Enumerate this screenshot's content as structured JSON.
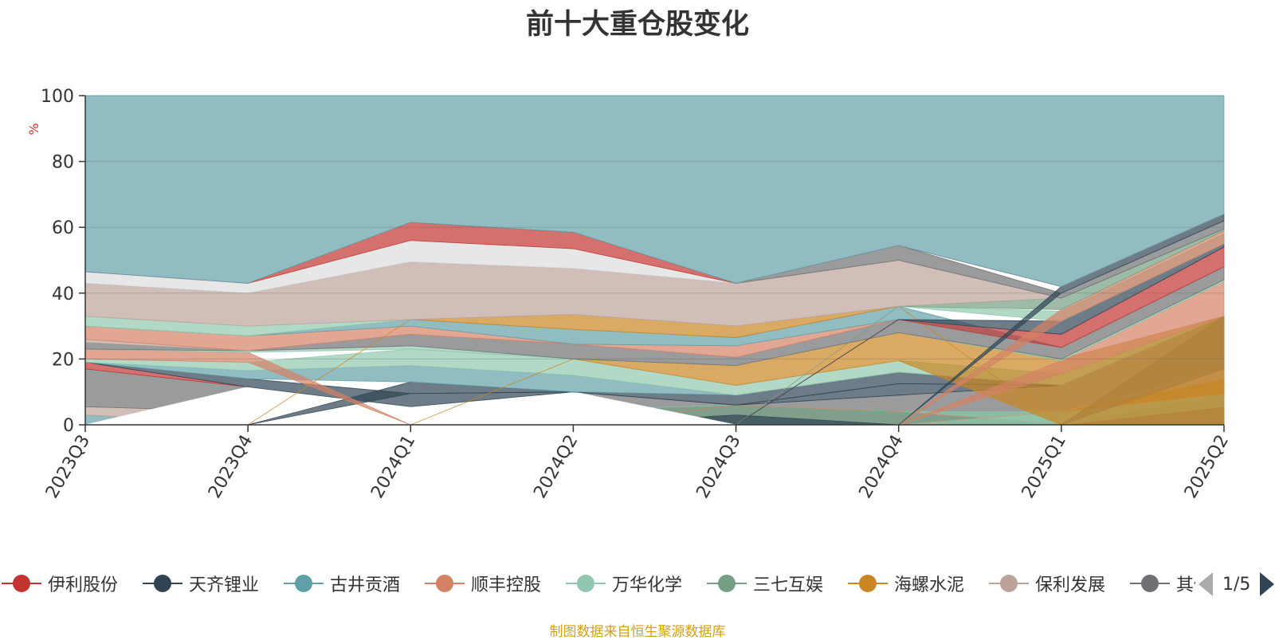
{
  "title": "前十大重仓股变化",
  "source_note": "制图数据来自恒生聚源数据库",
  "legend_page": "1/5",
  "legend": [
    {
      "name": "伊利股份",
      "color": "#c23531"
    },
    {
      "name": "天齐锂业",
      "color": "#2f4554"
    },
    {
      "name": "古井贡酒",
      "color": "#61a0a8"
    },
    {
      "name": "顺丰控股",
      "color": "#d48265"
    },
    {
      "name": "万华化学",
      "color": "#91c7ae"
    },
    {
      "name": "三七互娱",
      "color": "#749f83"
    },
    {
      "name": "海螺水泥",
      "color": "#ca8622"
    },
    {
      "name": "保利发展",
      "color": "#bda29a"
    },
    {
      "name": "其他",
      "color": "#6e7074"
    }
  ],
  "chart_data": {
    "type": "area",
    "title": "前十大重仓股变化",
    "ylabel": "%",
    "ylim": [
      0,
      100
    ],
    "yticks": [
      0,
      20,
      40,
      60,
      80,
      100
    ],
    "categories": [
      "2023Q3",
      "2023Q4",
      "2024Q1",
      "2024Q2",
      "2024Q3",
      "2024Q4",
      "2025Q1",
      "2025Q2"
    ],
    "grid": true,
    "bands": [
      {
        "color": "#61a0a8",
        "lower": [
          0,
          0,
          0,
          0,
          0,
          0,
          0,
          0
        ],
        "upper": [
          3,
          0,
          0,
          0,
          0,
          0,
          0,
          0
        ]
      },
      {
        "color": "#bda29a",
        "lower": [
          3,
          0,
          0,
          0,
          0,
          0,
          0,
          0
        ],
        "upper": [
          5.5,
          4,
          0,
          0,
          0,
          0,
          0,
          0
        ]
      },
      {
        "color": "#6e7074",
        "lower": [
          5.5,
          4,
          0,
          0,
          0,
          0,
          0,
          0
        ],
        "upper": [
          17,
          11.5,
          5,
          10,
          6,
          9,
          12,
          33
        ]
      },
      {
        "color": "#c23531",
        "lower": [
          17,
          11.5,
          0,
          0,
          0,
          0,
          0,
          0
        ],
        "upper": [
          19,
          11.5,
          0,
          0,
          0,
          0,
          0,
          5.5
        ]
      },
      {
        "color": "#749f83",
        "lower": [
          0,
          0,
          0,
          0,
          0,
          0,
          0,
          0
        ],
        "upper": [
          0,
          0,
          0,
          4.5,
          6,
          4,
          4,
          9
        ]
      },
      {
        "color": "#91c7ae",
        "lower": [
          0,
          0,
          0,
          4.5,
          6,
          4,
          0.3,
          9
        ],
        "upper": [
          0,
          0,
          0,
          4.5,
          6,
          4,
          4,
          9.5
        ]
      },
      {
        "color": "#d48265",
        "lower": [
          0,
          0,
          0,
          0,
          6,
          4,
          0.3,
          9.5
        ],
        "upper": [
          0,
          0,
          0,
          0,
          6,
          4,
          0.3,
          9.5
        ]
      },
      {
        "color": "#2f4554",
        "lower": [
          0,
          0,
          0,
          0,
          0,
          0,
          0,
          0
        ],
        "upper": [
          0,
          0,
          0,
          0,
          3,
          0,
          0,
          0
        ]
      },
      {
        "color": "#91c7ae",
        "lower": [
          0,
          0,
          0,
          0,
          0,
          0,
          0,
          5.5
        ],
        "upper": [
          0,
          0,
          0,
          0,
          0,
          0,
          4,
          9.5
        ]
      },
      {
        "color": "#ca8622",
        "lower": [
          0,
          0,
          0,
          0,
          0,
          0,
          4,
          9.5
        ],
        "upper": [
          0,
          0,
          0,
          0,
          0,
          0,
          4,
          14
        ]
      },
      {
        "color": "#bda29a",
        "lower": [
          0,
          0,
          0,
          0,
          0,
          0,
          4,
          14
        ],
        "upper": [
          0,
          0,
          0,
          0,
          0,
          0,
          4,
          17
        ]
      },
      {
        "color": "#6e7074",
        "lower": [
          0,
          0,
          0,
          0,
          0,
          0,
          0,
          17
        ],
        "upper": [
          0,
          0,
          0,
          0,
          0,
          0,
          0,
          33
        ]
      },
      {
        "color": "#ffffff",
        "lower": [
          0,
          0,
          0,
          0,
          0,
          0,
          0,
          0
        ],
        "upper": [
          0,
          11.5,
          5.5,
          10,
          0,
          0,
          0,
          0
        ]
      },
      {
        "color": "#2f4554",
        "lower": [
          19,
          11.5,
          5.5,
          10,
          6,
          9,
          12,
          33
        ],
        "upper": [
          19,
          14,
          9.5,
          10,
          6,
          12.5,
          12,
          33
        ]
      },
      {
        "color": "#2f4554",
        "lower": [
          0,
          0,
          9.5,
          10,
          6,
          12.5,
          12,
          33
        ],
        "upper": [
          0,
          0,
          13,
          10,
          9,
          16,
          12,
          33
        ]
      },
      {
        "color": "#61a0a8",
        "lower": [
          19,
          14,
          13,
          10,
          9,
          16,
          12,
          33
        ],
        "upper": [
          19,
          16.5,
          18,
          15,
          9,
          16,
          12,
          33
        ]
      },
      {
        "color": "#91c7ae",
        "lower": [
          19,
          16.5,
          18,
          15,
          9,
          16,
          12,
          33
        ],
        "upper": [
          20,
          19,
          23,
          20,
          12,
          19.5,
          15.5,
          33
        ]
      },
      {
        "color": "#ca8622",
        "lower": [
          0,
          0,
          0,
          20,
          12,
          19.5,
          0,
          0
        ],
        "upper": [
          0,
          0,
          0,
          20,
          18,
          28,
          20,
          33
        ]
      },
      {
        "color": "#d48265",
        "lower": [
          20,
          19,
          0,
          0,
          0,
          0,
          15.5,
          33
        ],
        "upper": [
          23,
          22,
          0,
          0,
          0,
          0,
          19.5,
          43.5
        ]
      },
      {
        "color": "#91c7ae",
        "lower": [
          23,
          22,
          23,
          20,
          18,
          28,
          19.5,
          43.5
        ],
        "upper": [
          23,
          22.5,
          24,
          20,
          18,
          28,
          20,
          44
        ]
      },
      {
        "color": "#6e7074",
        "lower": [
          23,
          22.5,
          24,
          20,
          18,
          28,
          20,
          44
        ],
        "upper": [
          25,
          22.5,
          27.5,
          24.5,
          20.5,
          32,
          23.5,
          48
        ]
      },
      {
        "color": "#bda29a",
        "lower": [
          25,
          22.5,
          27.5,
          24.5,
          20.5,
          32,
          23.5,
          48
        ],
        "upper": [
          26,
          22.5,
          27.5,
          24.5,
          20.5,
          32,
          23.5,
          48
        ]
      },
      {
        "color": "#d48265",
        "lower": [
          26,
          22.5,
          27.5,
          24.5,
          20.5,
          32,
          23.5,
          48
        ],
        "upper": [
          30,
          27,
          30,
          24.5,
          24,
          32,
          23.5,
          48
        ]
      },
      {
        "color": "#61a0a8",
        "lower": [
          30,
          27,
          30,
          24.5,
          24,
          32,
          23.5,
          48
        ],
        "upper": [
          30,
          27,
          32,
          29,
          26.5,
          36,
          23.5,
          48
        ]
      },
      {
        "color": "#ca8622",
        "lower": [
          0,
          0,
          32,
          29,
          26.5,
          36,
          0,
          0
        ],
        "upper": [
          0,
          0,
          32,
          33.5,
          30,
          36,
          0,
          0
        ]
      },
      {
        "color": "#c23531",
        "lower": [
          0,
          0,
          0,
          0,
          0,
          32,
          23.5,
          48
        ],
        "upper": [
          0,
          0,
          0,
          0,
          0,
          32,
          27.5,
          54
        ]
      },
      {
        "color": "#2f4554",
        "lower": [
          0,
          0,
          0,
          0,
          0,
          32,
          27.5,
          54
        ],
        "upper": [
          0,
          0,
          0,
          0,
          0,
          32,
          31.5,
          55
        ]
      },
      {
        "color": "#91c7ae",
        "lower": [
          30,
          27,
          32,
          33.5,
          30,
          36,
          31.5,
          55
        ],
        "upper": [
          33,
          30,
          32,
          33.5,
          30,
          36,
          34.5,
          58
        ]
      },
      {
        "color": "#d48265",
        "lower": [
          0,
          0,
          0,
          0,
          0,
          0,
          31.5,
          55
        ],
        "upper": [
          0,
          0,
          0,
          0,
          0,
          0,
          35,
          59
        ]
      },
      {
        "color": "#749f83",
        "lower": [
          0,
          0,
          0,
          0,
          0,
          36,
          35,
          59
        ],
        "upper": [
          0,
          0,
          0,
          0,
          0,
          36,
          38.5,
          59.5
        ]
      },
      {
        "color": "#bda29a",
        "lower": [
          33,
          30,
          32,
          33.5,
          30,
          36,
          38.5,
          59.5
        ],
        "upper": [
          43,
          40,
          49.5,
          47.5,
          43,
          50,
          38.5,
          59.5
        ]
      },
      {
        "color": "#6e7074",
        "lower": [
          43,
          40,
          49.5,
          47.5,
          43,
          50,
          38.5,
          59.5
        ],
        "upper": [
          43,
          40,
          49.5,
          47.5,
          43,
          54.5,
          40,
          62
        ]
      },
      {
        "color": "#2f4554",
        "lower": [
          0,
          0,
          0,
          0,
          0,
          0,
          40,
          62
        ],
        "upper": [
          0,
          0,
          0,
          0,
          0,
          0,
          42,
          64
        ]
      },
      {
        "color": "#dddddd",
        "lower": [
          43,
          40,
          49.5,
          47.5,
          43,
          54.5,
          42,
          64
        ],
        "upper": [
          46.5,
          43,
          56,
          53.5,
          43,
          54.5,
          42,
          64
        ]
      },
      {
        "color": "#c23531",
        "lower": [
          46.5,
          43,
          56,
          53.5,
          43,
          54.5,
          42,
          64
        ],
        "upper": [
          46.5,
          43,
          61.5,
          58.5,
          43,
          54.5,
          42,
          64
        ]
      },
      {
        "color": "#61a0a8",
        "lower": [
          46.5,
          43,
          61.5,
          58.5,
          43,
          54.5,
          42,
          64
        ],
        "upper": [
          100,
          100,
          100,
          100,
          100,
          100,
          100,
          100
        ]
      }
    ]
  }
}
